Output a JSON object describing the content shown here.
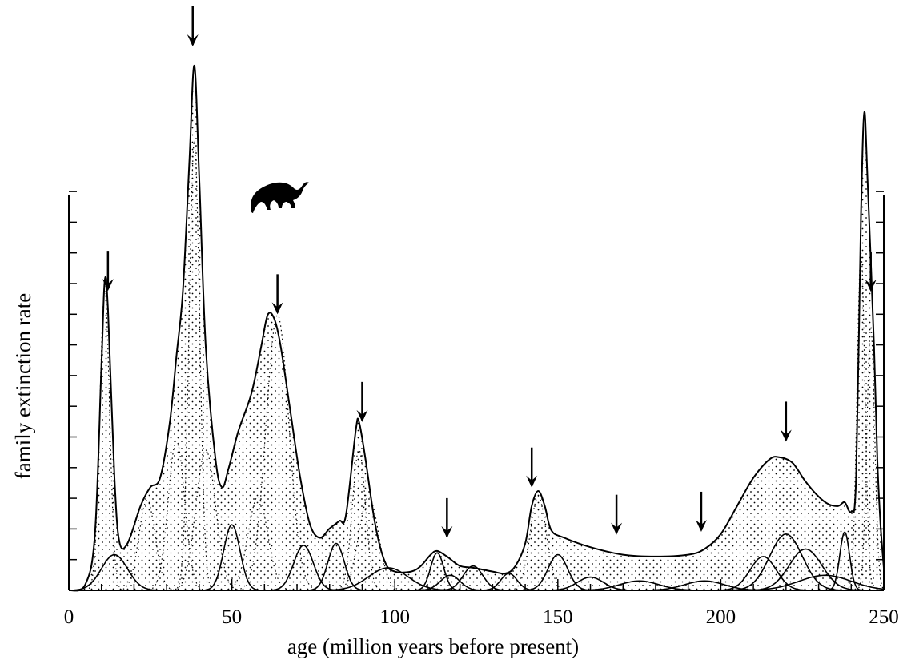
{
  "chart_data": {
    "type": "area",
    "title": "",
    "xlabel": "age (million years before present)",
    "ylabel": "family extinction rate",
    "xlim": [
      0,
      250
    ],
    "x_ticks": [
      0,
      50,
      100,
      150,
      200,
      250
    ],
    "x_tick_labels": [
      "0",
      "50",
      "100",
      "150",
      "200",
      "250"
    ],
    "grid": false,
    "legend": "none",
    "series": [
      {
        "values": [
          [
            0,
            0
          ],
          [
            5,
            0.3
          ],
          [
            8,
            3
          ],
          [
            10,
            12
          ],
          [
            11,
            16.5
          ],
          [
            12,
            15
          ],
          [
            14,
            6
          ],
          [
            15.5,
            2.6
          ],
          [
            18,
            2.5
          ],
          [
            22,
            4.5
          ],
          [
            25,
            5.5
          ],
          [
            28,
            6
          ],
          [
            31,
            9
          ],
          [
            33,
            12.5
          ],
          [
            35,
            16
          ],
          [
            37,
            23
          ],
          [
            38.5,
            28
          ],
          [
            40,
            22
          ],
          [
            42,
            13
          ],
          [
            45,
            7
          ],
          [
            47,
            5.5
          ],
          [
            49,
            6.5
          ],
          [
            52,
            8.5
          ],
          [
            56,
            10.5
          ],
          [
            59,
            13
          ],
          [
            61,
            14.7
          ],
          [
            63,
            14.5
          ],
          [
            65,
            13
          ],
          [
            68,
            9.5
          ],
          [
            71,
            6
          ],
          [
            74,
            3.5
          ],
          [
            77,
            2.8
          ],
          [
            80,
            3.3
          ],
          [
            83,
            3.7
          ],
          [
            85,
            4
          ],
          [
            88,
            8.5
          ],
          [
            89,
            9
          ],
          [
            91,
            7
          ],
          [
            94,
            3.5
          ],
          [
            97,
            1.5
          ],
          [
            100,
            1
          ],
          [
            105,
            1
          ],
          [
            108,
            1.3
          ],
          [
            111,
            1.9
          ],
          [
            113,
            2.1
          ],
          [
            116,
            1.8
          ],
          [
            120,
            1.3
          ],
          [
            124,
            1.2
          ],
          [
            130,
            1
          ],
          [
            134,
            0.9
          ],
          [
            137,
            1.3
          ],
          [
            140,
            2.5
          ],
          [
            142,
            4.5
          ],
          [
            144,
            5.3
          ],
          [
            146,
            4.5
          ],
          [
            148,
            3.2
          ],
          [
            152,
            2.8
          ],
          [
            160,
            2.3
          ],
          [
            170,
            1.9
          ],
          [
            180,
            1.8
          ],
          [
            190,
            1.9
          ],
          [
            195,
            2.2
          ],
          [
            200,
            3
          ],
          [
            205,
            4.5
          ],
          [
            210,
            6
          ],
          [
            215,
            7
          ],
          [
            218,
            7.1
          ],
          [
            222,
            6.8
          ],
          [
            226,
            5.8
          ],
          [
            230,
            5
          ],
          [
            233,
            4.6
          ],
          [
            236,
            4.5
          ],
          [
            238,
            4.7
          ],
          [
            240,
            4.2
          ],
          [
            241.5,
            6
          ],
          [
            243,
            20
          ],
          [
            244,
            25.5
          ],
          [
            245,
            22
          ],
          [
            247,
            13
          ],
          [
            248,
            7
          ],
          [
            249,
            3.5
          ],
          [
            250,
            1.2
          ]
        ]
      }
    ],
    "component_curves": [
      {
        "center": 11,
        "height": 16,
        "width": 1.5
      },
      {
        "center": 14,
        "height": 1.9,
        "width": 4
      },
      {
        "center": 24,
        "height": 4.8,
        "width": 2.5
      },
      {
        "center": 33,
        "height": 8,
        "width": 2.5
      },
      {
        "center": 38.5,
        "height": 24,
        "width": 1.6
      },
      {
        "center": 42,
        "height": 7.5,
        "width": 3
      },
      {
        "center": 50,
        "height": 3.5,
        "width": 2.5
      },
      {
        "center": 58,
        "height": 5,
        "width": 3
      },
      {
        "center": 64,
        "height": 14.7,
        "width": 3.5
      },
      {
        "center": 72,
        "height": 2.4,
        "width": 3
      },
      {
        "center": 82,
        "height": 2.5,
        "width": 2.5
      },
      {
        "center": 89,
        "height": 7.5,
        "width": 2
      },
      {
        "center": 92,
        "height": 5,
        "width": 3
      },
      {
        "center": 98,
        "height": 1.2,
        "width": 6
      },
      {
        "center": 113,
        "height": 2,
        "width": 2
      },
      {
        "center": 117,
        "height": 0.8,
        "width": 3
      },
      {
        "center": 124,
        "height": 1.3,
        "width": 3
      },
      {
        "center": 135,
        "height": 0.9,
        "width": 2.5
      },
      {
        "center": 144,
        "height": 5,
        "width": 2.5
      },
      {
        "center": 150,
        "height": 1.9,
        "width": 3
      },
      {
        "center": 160,
        "height": 0.7,
        "width": 4
      },
      {
        "center": 175,
        "height": 0.5,
        "width": 6
      },
      {
        "center": 195,
        "height": 0.5,
        "width": 6
      },
      {
        "center": 213,
        "height": 1.8,
        "width": 4
      },
      {
        "center": 220,
        "height": 3,
        "width": 5
      },
      {
        "center": 226,
        "height": 2.2,
        "width": 5
      },
      {
        "center": 232,
        "height": 0.8,
        "width": 8
      },
      {
        "center": 238,
        "height": 3.1,
        "width": 1.5
      },
      {
        "center": 243,
        "height": 18,
        "width": 1.2
      },
      {
        "center": 246,
        "height": 14,
        "width": 1.2
      }
    ],
    "extinction_arrows_x": [
      12,
      38,
      64,
      90,
      116,
      142,
      168,
      194,
      220,
      246
    ],
    "tall_arrow_x": 38,
    "annotations": [
      {
        "type": "dinosaur-silhouette-icon",
        "x": 64
      }
    ]
  }
}
